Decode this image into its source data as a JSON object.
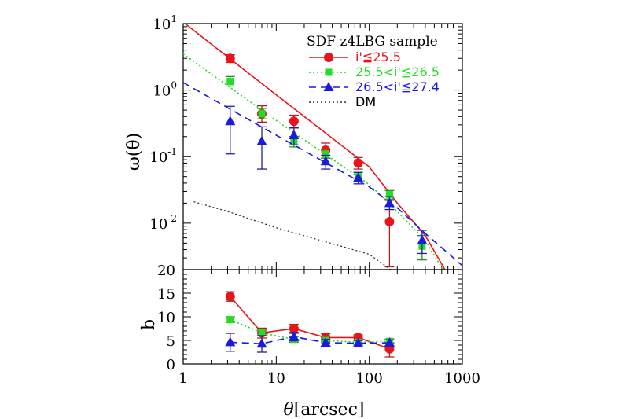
{
  "chart_data": {
    "x_axis": {
      "label_symbol": "θ",
      "label_unit": "[arcsec]",
      "scale": "log",
      "range": [
        1,
        1000
      ],
      "ticks": [
        {
          "value": 1,
          "label": "1"
        },
        {
          "value": 10,
          "label": "10"
        },
        {
          "value": 100,
          "label": "100"
        },
        {
          "value": 1000,
          "label": "1000"
        }
      ]
    },
    "colors": {
      "bright": "#e8141a",
      "mid": "#22dd22",
      "faint": "#1a1ae0",
      "dm": "#333333",
      "bright_err": "#b02020",
      "mid_err": "#2a8a2a",
      "faint_err": "#2020a0"
    },
    "panels": [
      {
        "id": "top",
        "type": "line",
        "ylabel": "ω(θ)",
        "y_scale": "log",
        "ylim": [
          0.002,
          10
        ],
        "y_ticks": [
          {
            "value": 10,
            "base": "10",
            "exp": "1"
          },
          {
            "value": 1,
            "base": "10",
            "exp": "0"
          },
          {
            "value": 0.1,
            "base": "10",
            "exp": "-1"
          },
          {
            "value": 0.01,
            "base": "10",
            "exp": "-2"
          }
        ],
        "legend": {
          "title": "SDF z4LBG sample",
          "position": "top-right",
          "entries": [
            {
              "key": "bright",
              "label": "i'≦25.5",
              "marker": "circle",
              "line": "solid"
            },
            {
              "key": "mid",
              "label": "25.5<i'≦26.5",
              "marker": "square",
              "line": "dotted"
            },
            {
              "key": "faint",
              "label": "26.5<i'≦27.4",
              "marker": "triangle",
              "line": "dashed"
            },
            {
              "key": "dm",
              "label": "DM",
              "marker": "none",
              "line": "dotted"
            }
          ]
        },
        "series": [
          {
            "key": "bright",
            "points": [
              {
                "x": 3.2,
                "y": 3.0,
                "lo": 2.6,
                "hi": 3.4
              },
              {
                "x": 7.0,
                "y": 0.44,
                "lo": 0.33,
                "hi": 0.58
              },
              {
                "x": 15.5,
                "y": 0.34,
                "lo": 0.27,
                "hi": 0.42
              },
              {
                "x": 34,
                "y": 0.125,
                "lo": 0.095,
                "hi": 0.16
              },
              {
                "x": 76,
                "y": 0.08,
                "lo": 0.065,
                "hi": 0.097
              },
              {
                "x": 165,
                "y": 0.0105,
                "lo": 0.0022,
                "hi": 0.022
              }
            ],
            "model": [
              {
                "x": 1,
                "y": 10.5
              },
              {
                "x": 10,
                "y": 0.85
              },
              {
                "x": 100,
                "y": 0.07
              },
              {
                "x": 200,
                "y": 0.02
              },
              {
                "x": 400,
                "y": 0.0065
              },
              {
                "x": 650,
                "y": 0.002
              }
            ]
          },
          {
            "key": "mid",
            "points": [
              {
                "x": 3.2,
                "y": 1.35,
                "lo": 1.15,
                "hi": 1.6
              },
              {
                "x": 7.0,
                "y": 0.44,
                "lo": 0.37,
                "hi": 0.53
              },
              {
                "x": 15.5,
                "y": 0.17,
                "lo": 0.14,
                "hi": 0.2
              },
              {
                "x": 34,
                "y": 0.11,
                "lo": 0.095,
                "hi": 0.13
              },
              {
                "x": 76,
                "y": 0.05,
                "lo": 0.043,
                "hi": 0.058
              },
              {
                "x": 165,
                "y": 0.027,
                "lo": 0.023,
                "hi": 0.031
              },
              {
                "x": 370,
                "y": 0.0045,
                "lo": 0.0028,
                "hi": 0.0065
              }
            ],
            "model": [
              {
                "x": 1,
                "y": 3.5
              },
              {
                "x": 10,
                "y": 0.35
              },
              {
                "x": 100,
                "y": 0.038
              },
              {
                "x": 200,
                "y": 0.015
              },
              {
                "x": 400,
                "y": 0.0055
              },
              {
                "x": 620,
                "y": 0.002
              }
            ]
          },
          {
            "key": "faint",
            "points": [
              {
                "x": 3.2,
                "y": 0.34,
                "lo": 0.11,
                "hi": 0.57
              },
              {
                "x": 7.0,
                "y": 0.17,
                "lo": 0.065,
                "hi": 0.28
              },
              {
                "x": 15.5,
                "y": 0.21,
                "lo": 0.15,
                "hi": 0.27
              },
              {
                "x": 34,
                "y": 0.085,
                "lo": 0.065,
                "hi": 0.105
              },
              {
                "x": 76,
                "y": 0.048,
                "lo": 0.039,
                "hi": 0.058
              },
              {
                "x": 165,
                "y": 0.02,
                "lo": 0.016,
                "hi": 0.025
              },
              {
                "x": 370,
                "y": 0.0055,
                "lo": 0.0035,
                "hi": 0.0078
              }
            ],
            "model": [
              {
                "x": 1,
                "y": 1.3
              },
              {
                "x": 10,
                "y": 0.21
              },
              {
                "x": 100,
                "y": 0.035
              },
              {
                "x": 200,
                "y": 0.017
              },
              {
                "x": 400,
                "y": 0.007
              },
              {
                "x": 1000,
                "y": 0.0023
              }
            ]
          },
          {
            "key": "dm",
            "points": [],
            "model": [
              {
                "x": 1.3,
                "y": 0.021
              },
              {
                "x": 3,
                "y": 0.015
              },
              {
                "x": 10,
                "y": 0.0085
              },
              {
                "x": 30,
                "y": 0.0055
              },
              {
                "x": 100,
                "y": 0.0034
              },
              {
                "x": 170,
                "y": 0.002
              }
            ]
          }
        ]
      },
      {
        "id": "bottom",
        "type": "line",
        "ylabel": "b",
        "y_scale": "linear",
        "ylim": [
          0,
          20
        ],
        "y_ticks": [
          {
            "value": 0,
            "label": "0"
          },
          {
            "value": 5,
            "label": "5"
          },
          {
            "value": 10,
            "label": "10"
          },
          {
            "value": 15,
            "label": "15"
          },
          {
            "value": 20,
            "label": "20"
          }
        ],
        "series": [
          {
            "key": "bright",
            "points": [
              {
                "x": 3.2,
                "y": 14.3,
                "lo": 13.3,
                "hi": 15.3
              },
              {
                "x": 7.0,
                "y": 6.6,
                "lo": 5.5,
                "hi": 7.6
              },
              {
                "x": 15.5,
                "y": 7.5,
                "lo": 6.5,
                "hi": 8.4
              },
              {
                "x": 34,
                "y": 5.6,
                "lo": 4.8,
                "hi": 6.4
              },
              {
                "x": 76,
                "y": 5.6,
                "lo": 5.0,
                "hi": 6.2
              },
              {
                "x": 165,
                "y": 3.2,
                "lo": 1.5,
                "hi": 4.5
              }
            ]
          },
          {
            "key": "mid",
            "points": [
              {
                "x": 3.2,
                "y": 9.4,
                "lo": 8.8,
                "hi": 10.0
              },
              {
                "x": 7.0,
                "y": 6.6,
                "lo": 6.0,
                "hi": 7.2
              },
              {
                "x": 15.5,
                "y": 5.2,
                "lo": 4.6,
                "hi": 5.8
              },
              {
                "x": 34,
                "y": 5.0,
                "lo": 4.5,
                "hi": 5.5
              },
              {
                "x": 76,
                "y": 4.6,
                "lo": 4.1,
                "hi": 5.1
              },
              {
                "x": 165,
                "y": 4.8,
                "lo": 4.3,
                "hi": 5.3
              }
            ]
          },
          {
            "key": "faint",
            "points": [
              {
                "x": 3.2,
                "y": 4.6,
                "lo": 2.7,
                "hi": 6.5
              },
              {
                "x": 7.0,
                "y": 4.3,
                "lo": 2.5,
                "hi": 6.0
              },
              {
                "x": 15.5,
                "y": 5.8,
                "lo": 4.9,
                "hi": 6.7
              },
              {
                "x": 34,
                "y": 4.5,
                "lo": 3.8,
                "hi": 5.2
              },
              {
                "x": 76,
                "y": 4.4,
                "lo": 3.8,
                "hi": 5.0
              },
              {
                "x": 165,
                "y": 4.5,
                "lo": 3.9,
                "hi": 5.1
              }
            ]
          }
        ]
      }
    ]
  }
}
